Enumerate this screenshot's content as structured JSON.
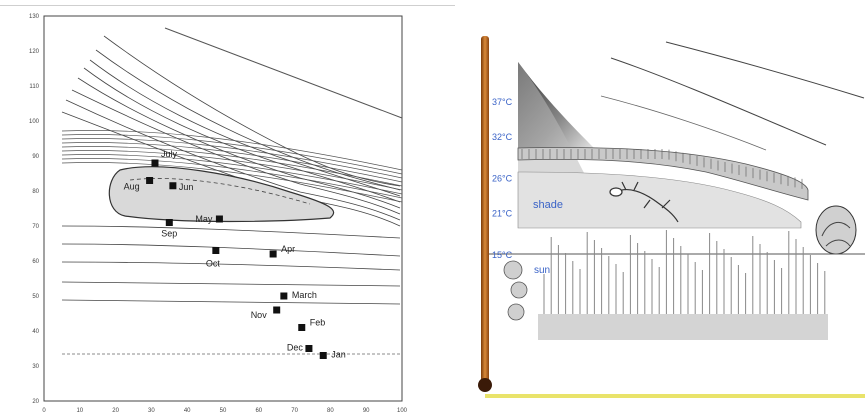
{
  "left_figure": {
    "axes": {
      "x_ticks": [
        "0",
        "10",
        "20",
        "30",
        "40",
        "50",
        "60",
        "70",
        "80",
        "90",
        "100"
      ],
      "y_ticks": [
        "130",
        "120",
        "110",
        "100",
        "90",
        "80",
        "70",
        "60",
        "50",
        "40",
        "30",
        "20"
      ]
    },
    "month_markers": [
      {
        "label": "July",
        "x": 31,
        "y": 88
      },
      {
        "label": "Jun",
        "x": 36,
        "y": 81.5
      },
      {
        "label": "Aug",
        "x": 29.5,
        "y": 83
      },
      {
        "label": "May",
        "x": 49,
        "y": 72
      },
      {
        "label": "Sep",
        "x": 35,
        "y": 71
      },
      {
        "label": "Oct",
        "x": 48,
        "y": 63
      },
      {
        "label": "Apr",
        "x": 64,
        "y": 62
      },
      {
        "label": "March",
        "x": 67,
        "y": 50
      },
      {
        "label": "Nov",
        "x": 65,
        "y": 46
      },
      {
        "label": "Feb",
        "x": 72,
        "y": 41
      },
      {
        "label": "Dec",
        "x": 74,
        "y": 35
      },
      {
        "label": "Jan",
        "x": 78,
        "y": 33
      }
    ],
    "colors": {
      "marker": "#111111",
      "comfort_zone": "#d9d9d9",
      "line": "#333333"
    }
  },
  "right_figure": {
    "thermometer_labels": [
      {
        "text": "37°C",
        "value": 37
      },
      {
        "text": "32°C",
        "value": 32
      },
      {
        "text": "26°C",
        "value": 26
      },
      {
        "text": "21°C",
        "value": 21
      },
      {
        "text": "15°C",
        "value": 15
      }
    ],
    "zone_labels": {
      "shade": "shade",
      "sun": "sun"
    },
    "colors": {
      "thermometer": "#c9701e",
      "label": "#3a63c7",
      "base_line": "#e9e36a"
    }
  }
}
